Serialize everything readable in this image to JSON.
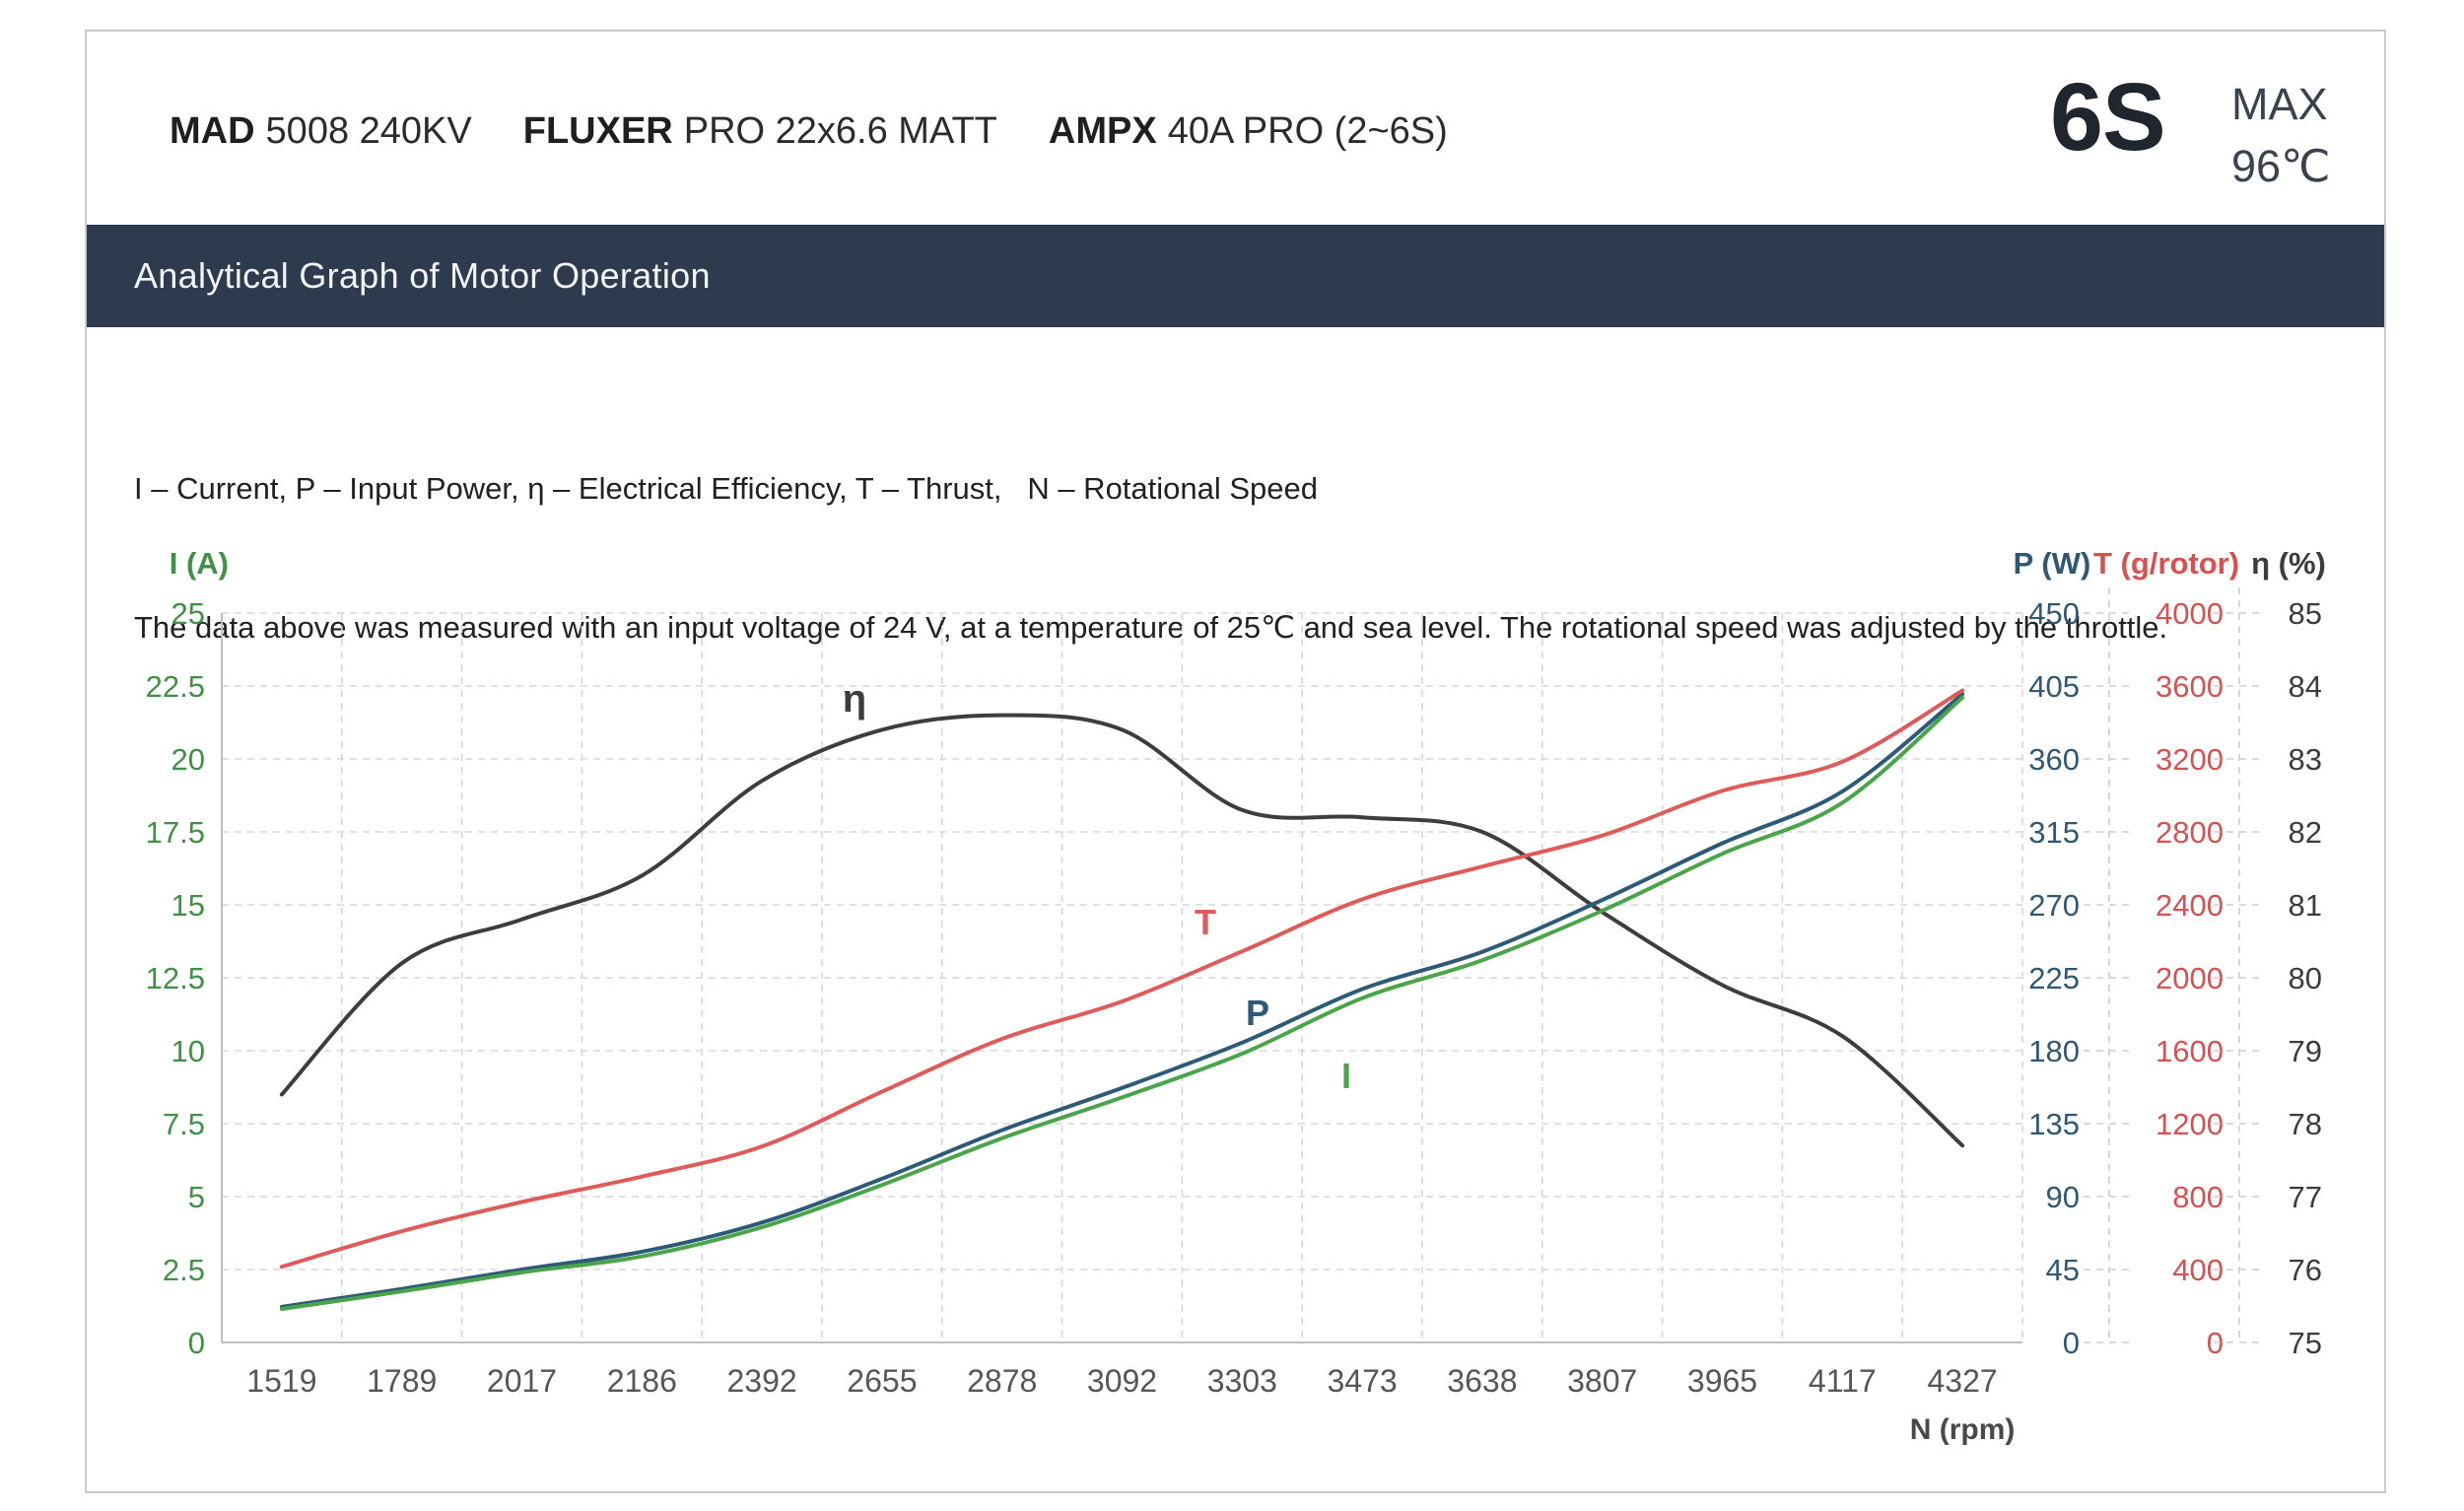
{
  "header": {
    "items": [
      {
        "brand": "MAD",
        "rest": "5008 240KV"
      },
      {
        "brand": "FLUXER",
        "rest": "PRO 22x6.6 MATT"
      },
      {
        "brand": "AMPX",
        "rest": "40A PRO (2~6S)"
      }
    ],
    "battery": "6S",
    "max_label": "MAX",
    "max_temp": "96℃"
  },
  "banner": {
    "title": "Analytical Graph of Motor Operation"
  },
  "description": {
    "line1": "I – Current, P – Input Power, η – Electrical Efficiency, T – Thrust,   N – Rotational Speed",
    "line2": "The data above was measured with an input voltage of 24 V, at a temperature of 25℃ and sea level. The rotational speed was adjusted by the throttle."
  },
  "chart_data": {
    "type": "line",
    "title": "Analytical Graph of Motor Operation",
    "xlabel": "N (rpm)",
    "categories": [
      1519,
      1789,
      2017,
      2186,
      2392,
      2655,
      2878,
      3092,
      3303,
      3473,
      3638,
      3807,
      3965,
      4117,
      4327
    ],
    "axes": {
      "current": {
        "title": "I (A)",
        "min": 0,
        "max": 25,
        "step": 2.5,
        "color": "#3f9243",
        "side": "left"
      },
      "power": {
        "title": "P (W)",
        "min": 0,
        "max": 450,
        "step": 45,
        "color": "#2f5872",
        "side": "right"
      },
      "thrust": {
        "title": "T (g/rotor)",
        "min": 0,
        "max": 4000,
        "step": 400,
        "color": "#d85050",
        "side": "right"
      },
      "efficiency": {
        "title": "η (%)",
        "min": 75,
        "max": 85,
        "step": 1,
        "color": "#3c3c3c",
        "side": "right"
      }
    },
    "series": [
      {
        "name": "eta",
        "label": "η",
        "axis": "efficiency",
        "color": "#3d3d3d",
        "values": [
          78.4,
          80.2,
          80.8,
          81.4,
          82.7,
          83.4,
          83.6,
          83.4,
          82.3,
          82.2,
          82.0,
          80.9,
          79.9,
          79.2,
          77.7
        ]
      },
      {
        "name": "P",
        "label": "P",
        "axis": "power",
        "color": "#2c5a77",
        "values": [
          22,
          33,
          45,
          56,
          74,
          101,
          131,
          157,
          185,
          218,
          241,
          273,
          308,
          340,
          400
        ]
      },
      {
        "name": "I",
        "label": "I",
        "axis": "current",
        "color": "#4aa44a",
        "values": [
          1.15,
          1.75,
          2.4,
          2.95,
          3.95,
          5.4,
          7.0,
          8.4,
          9.9,
          11.8,
          13.1,
          14.8,
          16.75,
          18.5,
          22.1
        ]
      },
      {
        "name": "T",
        "label": "T",
        "axis": "thrust",
        "color": "#e05a5a",
        "values": [
          415,
          610,
          770,
          910,
          1075,
          1375,
          1665,
          1870,
          2145,
          2430,
          2610,
          2780,
          3025,
          3185,
          3575
        ]
      }
    ],
    "grid": true,
    "legend": "inline-curve-labels",
    "ylim_note": "all four series share one plot; each series is scaled to its own axis range"
  }
}
